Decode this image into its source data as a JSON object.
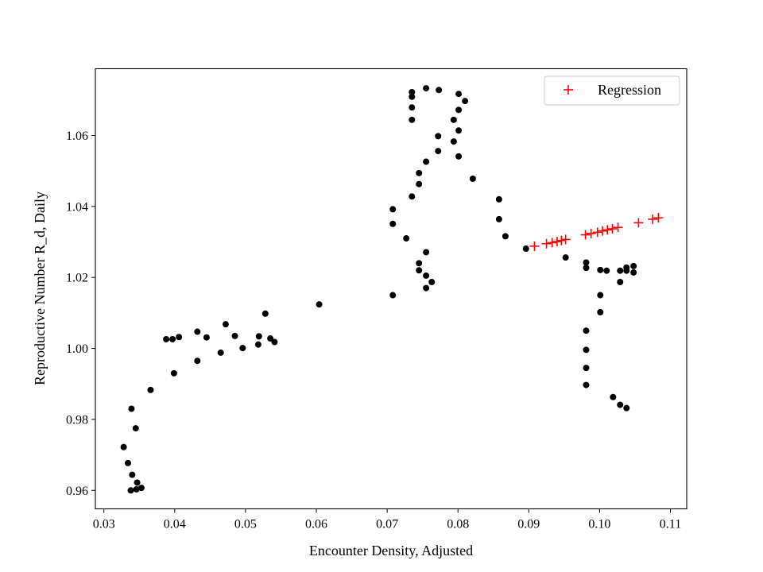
{
  "chart_data": {
    "type": "scatter",
    "title": "",
    "xlabel": "Encounter Density, Adjusted",
    "ylabel": "Reproductive Number R_d, Daily",
    "xlim": [
      0.0288,
      0.1123
    ],
    "ylim": [
      0.9548,
      1.0788
    ],
    "xticks": [
      0.03,
      0.04,
      0.05,
      0.06,
      0.07,
      0.08,
      0.09,
      0.1,
      0.11
    ],
    "xtick_labels": [
      "0.03",
      "0.04",
      "0.05",
      "0.06",
      "0.07",
      "0.08",
      "0.09",
      "0.10",
      "0.11"
    ],
    "yticks": [
      0.96,
      0.98,
      1.0,
      1.02,
      1.04,
      1.06
    ],
    "ytick_labels": [
      "0.96",
      "0.98",
      "1.00",
      "1.02",
      "1.04",
      "1.06"
    ],
    "grid": false,
    "legend": {
      "placement": "top-right",
      "entries": [
        "Regression"
      ]
    },
    "series": [
      {
        "marker": "dot",
        "color": "#000000",
        "points": [
          [
            0.0328,
            0.9722
          ],
          [
            0.0334,
            0.9677
          ],
          [
            0.034,
            0.9644
          ],
          [
            0.0347,
            0.9622
          ],
          [
            0.0353,
            0.9607
          ],
          [
            0.0346,
            0.9603
          ],
          [
            0.0338,
            0.96
          ],
          [
            0.0339,
            0.983
          ],
          [
            0.0345,
            0.9775
          ],
          [
            0.0366,
            0.9883
          ],
          [
            0.0399,
            0.993
          ],
          [
            0.0388,
            1.0026
          ],
          [
            0.0397,
            1.0026
          ],
          [
            0.0406,
            1.0032
          ],
          [
            0.0432,
            1.0047
          ],
          [
            0.0445,
            1.0031
          ],
          [
            0.0432,
            0.9965
          ],
          [
            0.0465,
            0.9988
          ],
          [
            0.0472,
            1.0068
          ],
          [
            0.0485,
            1.0035
          ],
          [
            0.0496,
            1.0001
          ],
          [
            0.0518,
            1.0011
          ],
          [
            0.0519,
            1.0034
          ],
          [
            0.0528,
            1.0098
          ],
          [
            0.0535,
            1.0028
          ],
          [
            0.0541,
            1.0018
          ],
          [
            0.0604,
            1.0124
          ],
          [
            0.0708,
            1.015
          ],
          [
            0.0708,
            1.0351
          ],
          [
            0.0708,
            1.0392
          ],
          [
            0.0727,
            1.031
          ],
          [
            0.0735,
            1.0428
          ],
          [
            0.0745,
            1.0463
          ],
          [
            0.0745,
            1.0494
          ],
          [
            0.0755,
            1.0526
          ],
          [
            0.0772,
            1.0556
          ],
          [
            0.0772,
            1.0598
          ],
          [
            0.0735,
            1.0644
          ],
          [
            0.0735,
            1.0679
          ],
          [
            0.0735,
            1.0709
          ],
          [
            0.0735,
            1.0722
          ],
          [
            0.0755,
            1.0733
          ],
          [
            0.0773,
            1.0728
          ],
          [
            0.0801,
            1.0717
          ],
          [
            0.081,
            1.0697
          ],
          [
            0.0801,
            1.0672
          ],
          [
            0.0794,
            1.0644
          ],
          [
            0.0801,
            1.0614
          ],
          [
            0.0794,
            1.0583
          ],
          [
            0.0801,
            1.0541
          ],
          [
            0.0821,
            1.0478
          ],
          [
            0.0858,
            1.042
          ],
          [
            0.0858,
            1.0364
          ],
          [
            0.0867,
            1.0316
          ],
          [
            0.0896,
            1.0281
          ],
          [
            0.0745,
            1.024
          ],
          [
            0.0745,
            1.022
          ],
          [
            0.0755,
            1.0205
          ],
          [
            0.0763,
            1.0187
          ],
          [
            0.0755,
            1.017
          ],
          [
            0.0755,
            1.0271
          ],
          [
            0.0952,
            1.0256
          ],
          [
            0.0981,
            1.0242
          ],
          [
            0.0981,
            1.0227
          ],
          [
            0.1001,
            1.0221
          ],
          [
            0.101,
            1.0219
          ],
          [
            0.1029,
            1.0219
          ],
          [
            0.1038,
            1.0228
          ],
          [
            0.1048,
            1.0232
          ],
          [
            0.1038,
            1.0219
          ],
          [
            0.1048,
            1.0214
          ],
          [
            0.1029,
            1.0187
          ],
          [
            0.1001,
            1.015
          ],
          [
            0.1001,
            1.0102
          ],
          [
            0.0981,
            1.005
          ],
          [
            0.0981,
            0.9996
          ],
          [
            0.0981,
            0.9945
          ],
          [
            0.0981,
            0.9897
          ],
          [
            0.1019,
            0.9863
          ],
          [
            0.1029,
            0.9841
          ],
          [
            0.1038,
            0.9832
          ]
        ]
      },
      {
        "name": "Regression",
        "marker": "plus",
        "color": "#ff0000",
        "points": [
          [
            0.0908,
            1.0288
          ],
          [
            0.0925,
            1.0295
          ],
          [
            0.0933,
            1.0298
          ],
          [
            0.094,
            1.0301
          ],
          [
            0.0946,
            1.0304
          ],
          [
            0.0952,
            1.0307
          ],
          [
            0.098,
            1.032
          ],
          [
            0.0988,
            1.0324
          ],
          [
            0.0997,
            1.0327
          ],
          [
            0.1004,
            1.0331
          ],
          [
            0.1011,
            1.0334
          ],
          [
            0.1018,
            1.0337
          ],
          [
            0.1026,
            1.0341
          ],
          [
            0.1055,
            1.0354
          ],
          [
            0.1075,
            1.0364
          ],
          [
            0.1083,
            1.0368
          ]
        ]
      }
    ]
  }
}
